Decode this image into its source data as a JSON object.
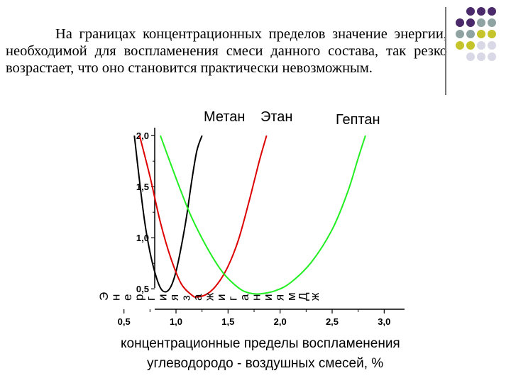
{
  "slide": {
    "paragraph": "На границах концентрационных пределов значение энергии, необходимой для воспламенения смеси данного состава, так резко возрастает, что оно становится практически невозможным."
  },
  "decoration": {
    "dot_colors": [
      "#4b2a6b",
      "#8fa3a3",
      "#c5c42a",
      "#d8d8e6"
    ],
    "dots": [
      [
        null,
        0,
        0,
        0
      ],
      [
        0,
        0,
        1,
        1
      ],
      [
        1,
        1,
        2,
        2
      ],
      [
        2,
        2,
        3,
        3
      ],
      [
        null,
        3,
        3,
        3
      ]
    ]
  },
  "chart_data": {
    "type": "line",
    "xlabel_lines": [
      "концентрационные пределы воспламенения",
      "углеводородо - воздушных смесей, %"
    ],
    "ylabel": "Энергия зажигания, мДж",
    "xlim": [
      0.4,
      3.25
    ],
    "ylim": [
      0.3,
      2.05
    ],
    "x_ticks": [
      0.5,
      1.0,
      1.5,
      2.0,
      2.5,
      3.0
    ],
    "x_tick_labels": [
      "0,5",
      "1,0",
      "1,5",
      "2,0",
      "2,5",
      "3,0"
    ],
    "y_ticks": [
      0.5,
      1.0,
      1.5,
      2.0
    ],
    "y_tick_labels": [
      "0,5",
      "1,0",
      "1,5",
      "2,0"
    ],
    "grid": false,
    "series": [
      {
        "name": "Метан",
        "color": "#000000",
        "x": [
          0.6,
          0.65,
          0.7,
          0.75,
          0.8,
          0.85,
          0.9,
          0.95,
          1.0,
          1.05,
          1.1,
          1.15,
          1.2,
          1.25
        ],
        "y": [
          2.0,
          1.55,
          1.15,
          0.86,
          0.65,
          0.51,
          0.47,
          0.52,
          0.67,
          0.91,
          1.2,
          1.55,
          1.85,
          2.0
        ]
      },
      {
        "name": "Этан",
        "color": "#dd0000",
        "x": [
          0.65,
          0.75,
          0.85,
          0.95,
          1.05,
          1.15,
          1.2,
          1.3,
          1.4,
          1.5,
          1.6,
          1.7,
          1.8,
          1.87
        ],
        "y": [
          2.0,
          1.6,
          1.15,
          0.8,
          0.55,
          0.44,
          0.42,
          0.45,
          0.55,
          0.72,
          0.98,
          1.35,
          1.75,
          2.0
        ]
      },
      {
        "name": "Гептан",
        "color": "#22ee22",
        "x": [
          0.85,
          0.95,
          1.05,
          1.15,
          1.3,
          1.45,
          1.6,
          1.7,
          1.8,
          1.95,
          2.1,
          2.3,
          2.5,
          2.65,
          2.75,
          2.82
        ],
        "y": [
          2.0,
          1.72,
          1.45,
          1.2,
          0.9,
          0.66,
          0.51,
          0.46,
          0.45,
          0.48,
          0.56,
          0.76,
          1.08,
          1.45,
          1.78,
          2.0
        ]
      }
    ]
  }
}
